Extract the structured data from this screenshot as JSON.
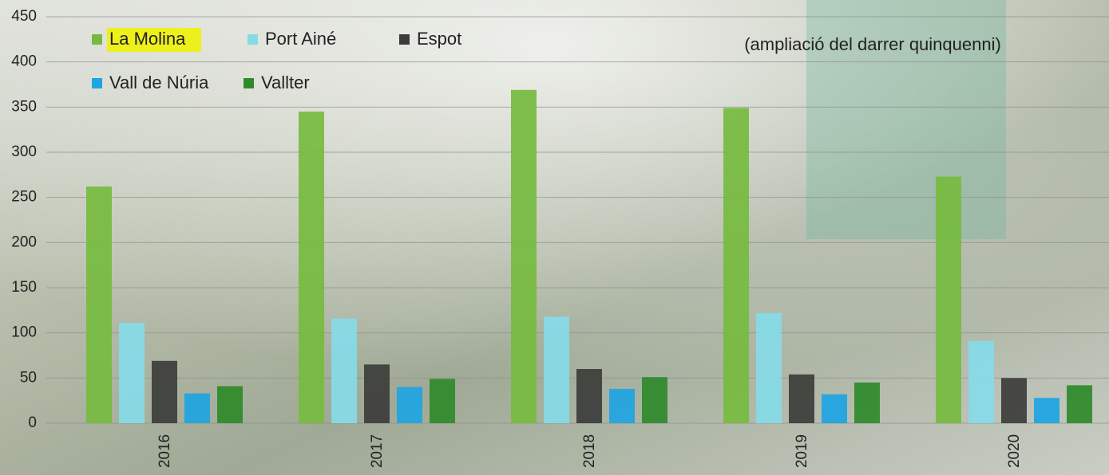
{
  "chart_data": {
    "type": "bar",
    "annotation": "(ampliació del darrer quinquenni)",
    "categories": [
      "2016",
      "2017",
      "2018",
      "2019",
      "2020"
    ],
    "series": [
      {
        "name": "La Molina",
        "color": "#76bb3f",
        "values": [
          262,
          345,
          369,
          349,
          273
        ]
      },
      {
        "name": "Port Ainé",
        "color": "#86dbe8",
        "values": [
          111,
          116,
          118,
          122,
          91
        ]
      },
      {
        "name": "Espot",
        "color": "#3c3d3b",
        "values": [
          69,
          65,
          60,
          54,
          50
        ]
      },
      {
        "name": "Vall de Núria",
        "color": "#1ea4e2",
        "values": [
          33,
          40,
          38,
          32,
          28
        ]
      },
      {
        "name": "Vallter",
        "color": "#2f8a2a",
        "values": [
          41,
          49,
          51,
          45,
          42
        ]
      }
    ],
    "ylim": [
      0,
      450
    ],
    "yticks": [
      0,
      50,
      100,
      150,
      200,
      250,
      300,
      350,
      400,
      450
    ],
    "grid": true
  }
}
